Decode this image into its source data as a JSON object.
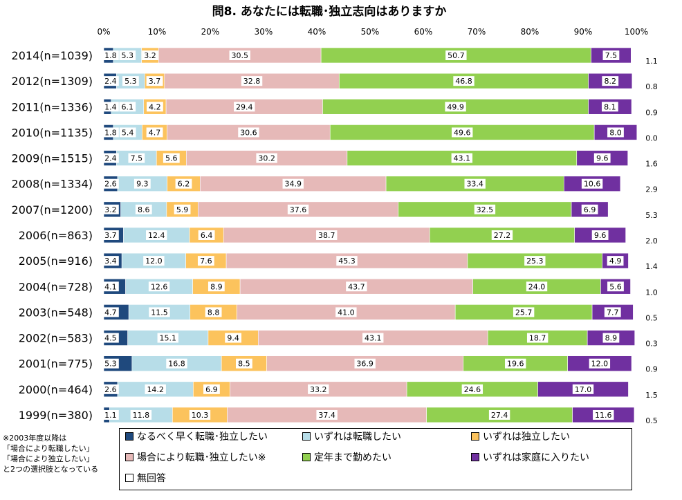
{
  "chart_data": {
    "type": "bar",
    "orientation": "horizontal",
    "stacked": "percent",
    "title": "問8. あなたには転職･独立志向はありますか",
    "x_ticks": [
      "0%",
      "10%",
      "20%",
      "30%",
      "40%",
      "50%",
      "60%",
      "70%",
      "80%",
      "90%",
      "100%"
    ],
    "xlim": [
      0,
      100
    ],
    "categories": [
      "2014(n=1039)",
      "2012(n=1309)",
      "2011(n=1336)",
      "2010(n=1135)",
      "2009(n=1515)",
      "2008(n=1334)",
      "2007(n=1200)",
      "2006(n=863)",
      "2005(n=916)",
      "2004(n=728)",
      "2003(n=548)",
      "2002(n=583)",
      "2001(n=775)",
      "2000(n=464)",
      "1999(n=380)"
    ],
    "series": [
      {
        "name": "なるべく早く転職･独立したい",
        "color": "#1f497d",
        "values": [
          1.8,
          2.4,
          1.4,
          1.8,
          2.4,
          2.6,
          3.2,
          3.7,
          3.4,
          4.1,
          4.7,
          4.5,
          5.3,
          2.6,
          1.1
        ]
      },
      {
        "name": "いずれは転職したい",
        "color": "#b7dde8",
        "values": [
          5.3,
          5.3,
          6.1,
          5.4,
          7.5,
          9.3,
          8.6,
          12.4,
          12.0,
          12.6,
          11.5,
          15.1,
          16.8,
          14.2,
          11.8
        ]
      },
      {
        "name": "いずれは独立したい",
        "color": "#fcc35d",
        "values": [
          3.2,
          3.7,
          4.2,
          4.7,
          5.6,
          6.2,
          5.9,
          6.4,
          7.6,
          8.9,
          8.8,
          9.4,
          8.5,
          6.9,
          10.3
        ]
      },
      {
        "name": "場合により転職･独立したい※",
        "color": "#e6b9b8",
        "values": [
          30.5,
          32.8,
          29.4,
          30.6,
          30.2,
          34.9,
          37.6,
          38.7,
          45.3,
          43.7,
          41.0,
          43.1,
          36.9,
          33.2,
          37.4
        ]
      },
      {
        "name": "定年まで勤めたい",
        "color": "#92d050",
        "values": [
          50.7,
          46.8,
          49.9,
          49.6,
          43.1,
          33.4,
          32.5,
          27.2,
          25.3,
          24.0,
          25.7,
          18.7,
          19.6,
          24.6,
          27.4
        ]
      },
      {
        "name": "いずれは家庭に入りたい",
        "color": "#7030a0",
        "values": [
          7.5,
          8.2,
          8.1,
          8.0,
          9.6,
          10.6,
          6.9,
          9.6,
          4.9,
          5.6,
          7.7,
          8.9,
          12.0,
          17.0,
          11.6
        ]
      },
      {
        "name": "無回答",
        "color": "#ffffff",
        "values": [
          1.1,
          0.8,
          0.9,
          0.0,
          1.6,
          2.9,
          5.3,
          2.0,
          1.4,
          1.0,
          0.5,
          0.3,
          0.9,
          1.5,
          0.5
        ]
      }
    ],
    "legend_position": "bottom",
    "note": [
      "※2003年度以降は",
      "「場合により転職したい」",
      "「場合により独立したい」",
      "と2つの選択肢となっている"
    ]
  }
}
